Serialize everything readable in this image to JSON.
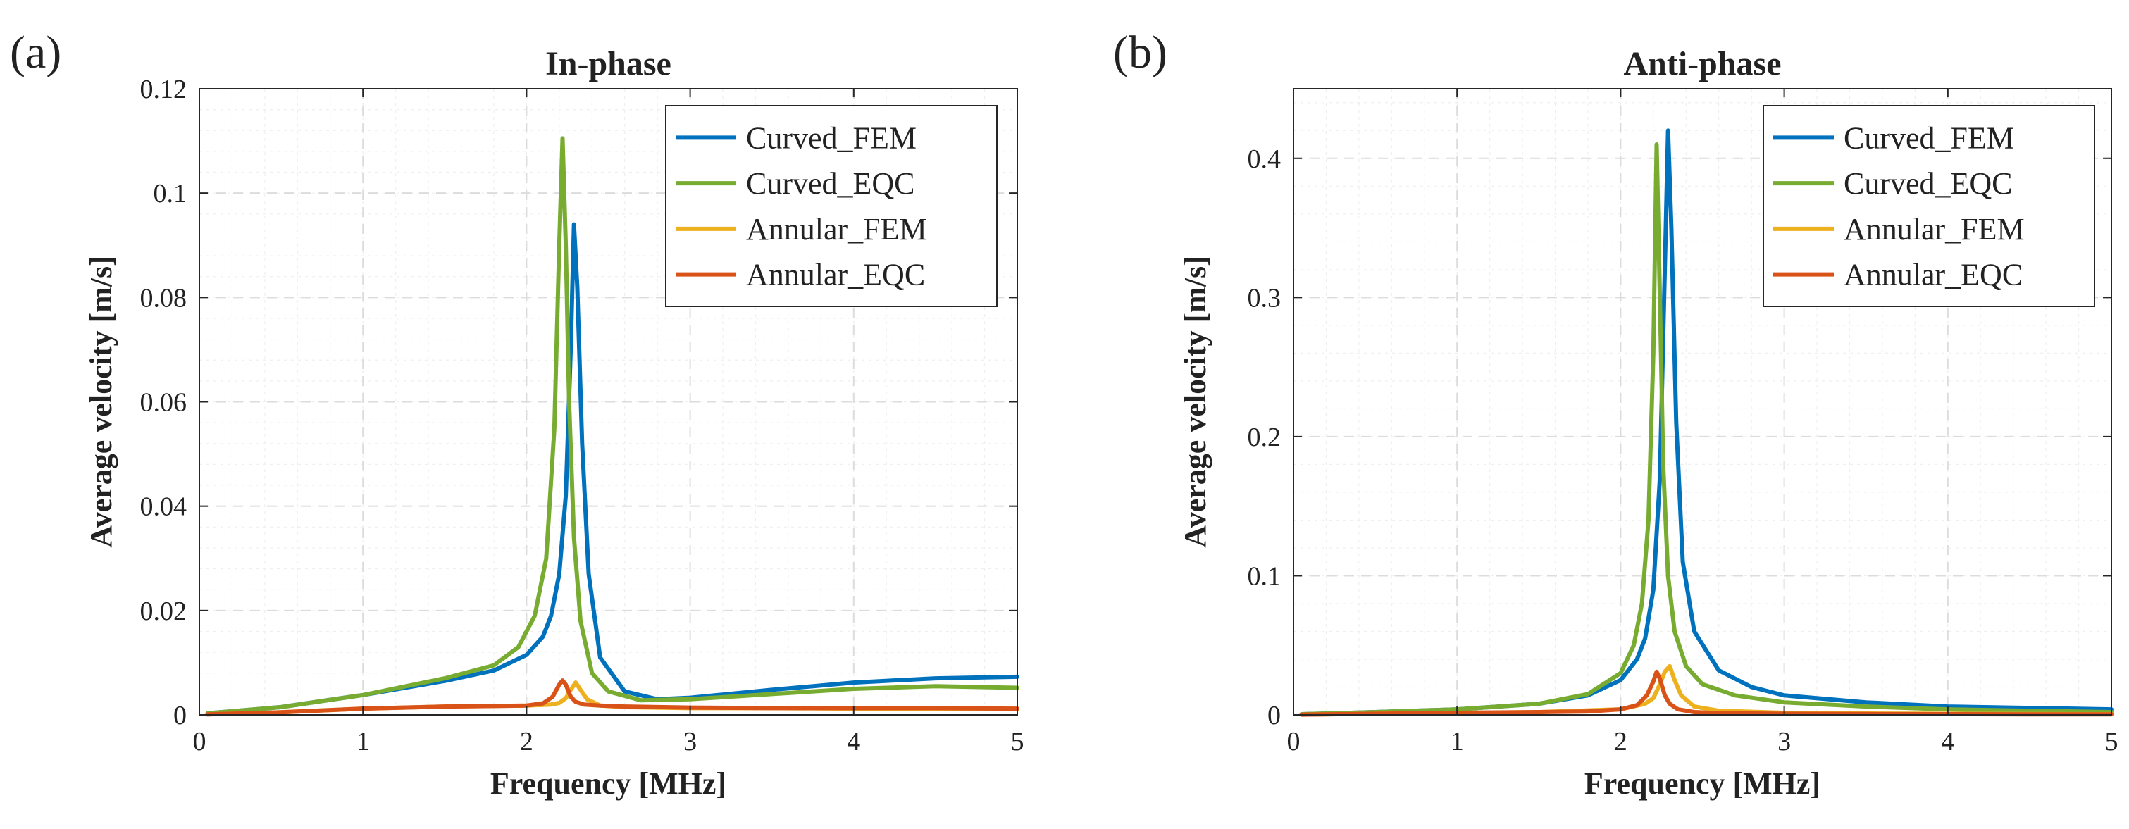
{
  "chart_data": [
    {
      "type": "line",
      "panel_label": "(a)",
      "title": "In-phase",
      "xlabel": "Frequency [MHz]",
      "ylabel": "Average velocity [m/s]",
      "xlim": [
        0,
        5
      ],
      "ylim": [
        0,
        0.12
      ],
      "xticks": [
        0,
        1,
        2,
        3,
        4,
        5
      ],
      "xtick_labels": [
        "0",
        "1",
        "2",
        "3",
        "4",
        "5"
      ],
      "yticks": [
        0,
        0.02,
        0.04,
        0.06,
        0.08,
        0.1,
        0.12
      ],
      "ytick_labels": [
        "0",
        "0.02",
        "0.04",
        "0.06",
        "0.08",
        "0.1",
        "0.12"
      ],
      "grid": true,
      "legend_position": "top-right",
      "series": [
        {
          "name": "Curved_FEM",
          "color": "#0072BD",
          "x": [
            0.05,
            0.5,
            1.0,
            1.5,
            1.8,
            2.0,
            2.1,
            2.15,
            2.2,
            2.24,
            2.27,
            2.29,
            2.31,
            2.34,
            2.38,
            2.45,
            2.6,
            2.8,
            3.0,
            3.5,
            4.0,
            4.5,
            5.0
          ],
          "y": [
            0.0003,
            0.0015,
            0.0038,
            0.0065,
            0.0085,
            0.0115,
            0.015,
            0.019,
            0.027,
            0.042,
            0.07,
            0.094,
            0.082,
            0.052,
            0.027,
            0.011,
            0.0045,
            0.003,
            0.0033,
            0.0048,
            0.0062,
            0.007,
            0.0073
          ]
        },
        {
          "name": "Curved_EQC",
          "color": "#77AC30",
          "x": [
            0.05,
            0.5,
            1.0,
            1.5,
            1.8,
            1.95,
            2.05,
            2.12,
            2.17,
            2.2,
            2.22,
            2.24,
            2.26,
            2.29,
            2.33,
            2.4,
            2.5,
            2.7,
            3.0,
            3.5,
            4.0,
            4.5,
            5.0
          ],
          "y": [
            0.0003,
            0.0015,
            0.0038,
            0.007,
            0.0095,
            0.013,
            0.019,
            0.03,
            0.055,
            0.09,
            0.1105,
            0.09,
            0.06,
            0.034,
            0.018,
            0.008,
            0.0045,
            0.0028,
            0.003,
            0.004,
            0.005,
            0.0055,
            0.0052
          ]
        },
        {
          "name": "Annular_FEM",
          "color": "#EDB120",
          "x": [
            0.05,
            0.5,
            1.0,
            1.5,
            2.0,
            2.15,
            2.2,
            2.24,
            2.27,
            2.3,
            2.33,
            2.37,
            2.45,
            2.6,
            3.0,
            3.5,
            4.0,
            4.5,
            5.0
          ],
          "y": [
            0.0001,
            0.0005,
            0.0012,
            0.0016,
            0.0018,
            0.002,
            0.0023,
            0.0032,
            0.0048,
            0.0062,
            0.0048,
            0.003,
            0.0018,
            0.0015,
            0.0013,
            0.0013,
            0.0012,
            0.0012,
            0.0011
          ]
        },
        {
          "name": "Annular_EQC",
          "color": "#D95319",
          "x": [
            0.05,
            0.5,
            1.0,
            1.5,
            1.8,
            2.0,
            2.1,
            2.16,
            2.2,
            2.22,
            2.24,
            2.27,
            2.3,
            2.35,
            2.45,
            2.6,
            3.0,
            3.5,
            4.0,
            4.5,
            5.0
          ],
          "y": [
            0.0001,
            0.0005,
            0.0012,
            0.0016,
            0.0017,
            0.0018,
            0.0022,
            0.0035,
            0.0058,
            0.0066,
            0.0058,
            0.0035,
            0.0025,
            0.002,
            0.0018,
            0.0016,
            0.0014,
            0.0013,
            0.0013,
            0.0013,
            0.0012
          ]
        }
      ]
    },
    {
      "type": "line",
      "panel_label": "(b)",
      "title": "Anti-phase",
      "xlabel": "Frequency [MHz]",
      "ylabel": "Average velocity [m/s]",
      "xlim": [
        0,
        5
      ],
      "ylim": [
        0,
        0.45
      ],
      "xticks": [
        0,
        1,
        2,
        3,
        4,
        5
      ],
      "xtick_labels": [
        "0",
        "1",
        "2",
        "3",
        "4",
        "5"
      ],
      "yticks": [
        0,
        0.1,
        0.2,
        0.3,
        0.4
      ],
      "ytick_labels": [
        "0",
        "0.1",
        "0.2",
        "0.3",
        "0.4"
      ],
      "grid": true,
      "legend_position": "top-right",
      "series": [
        {
          "name": "Curved_FEM",
          "color": "#0072BD",
          "x": [
            0.05,
            0.5,
            1.0,
            1.5,
            1.8,
            2.0,
            2.1,
            2.15,
            2.2,
            2.24,
            2.27,
            2.29,
            2.31,
            2.34,
            2.38,
            2.45,
            2.6,
            2.8,
            3.0,
            3.5,
            4.0,
            4.5,
            5.0
          ],
          "y": [
            0.0005,
            0.002,
            0.004,
            0.008,
            0.014,
            0.025,
            0.04,
            0.055,
            0.09,
            0.17,
            0.32,
            0.42,
            0.35,
            0.21,
            0.11,
            0.06,
            0.032,
            0.02,
            0.014,
            0.009,
            0.006,
            0.005,
            0.004
          ]
        },
        {
          "name": "Curved_EQC",
          "color": "#77AC30",
          "x": [
            0.05,
            0.5,
            1.0,
            1.5,
            1.8,
            2.0,
            2.08,
            2.13,
            2.17,
            2.2,
            2.22,
            2.24,
            2.26,
            2.29,
            2.33,
            2.4,
            2.5,
            2.7,
            3.0,
            3.5,
            4.0,
            4.5,
            5.0
          ],
          "y": [
            0.0005,
            0.002,
            0.004,
            0.008,
            0.015,
            0.03,
            0.05,
            0.08,
            0.14,
            0.26,
            0.41,
            0.3,
            0.18,
            0.1,
            0.06,
            0.035,
            0.022,
            0.014,
            0.009,
            0.006,
            0.004,
            0.003,
            0.002
          ]
        },
        {
          "name": "Annular_FEM",
          "color": "#EDB120",
          "x": [
            0.05,
            0.5,
            1.0,
            1.5,
            2.0,
            2.15,
            2.2,
            2.24,
            2.27,
            2.3,
            2.33,
            2.37,
            2.45,
            2.6,
            3.0,
            3.5,
            4.0,
            4.5,
            5.0
          ],
          "y": [
            0.0002,
            0.0008,
            0.0015,
            0.002,
            0.004,
            0.008,
            0.012,
            0.022,
            0.031,
            0.035,
            0.025,
            0.014,
            0.006,
            0.003,
            0.0015,
            0.001,
            0.0008,
            0.0006,
            0.0005
          ]
        },
        {
          "name": "Annular_EQC",
          "color": "#D95319",
          "x": [
            0.05,
            0.5,
            1.0,
            1.5,
            1.8,
            2.0,
            2.1,
            2.16,
            2.2,
            2.22,
            2.24,
            2.27,
            2.3,
            2.35,
            2.45,
            2.6,
            3.0,
            3.5,
            4.0,
            4.5,
            5.0
          ],
          "y": [
            0.0002,
            0.0008,
            0.0015,
            0.002,
            0.0025,
            0.004,
            0.007,
            0.014,
            0.024,
            0.031,
            0.026,
            0.014,
            0.008,
            0.004,
            0.002,
            0.0012,
            0.0008,
            0.0006,
            0.0005,
            0.0004,
            0.0004
          ]
        }
      ]
    }
  ]
}
